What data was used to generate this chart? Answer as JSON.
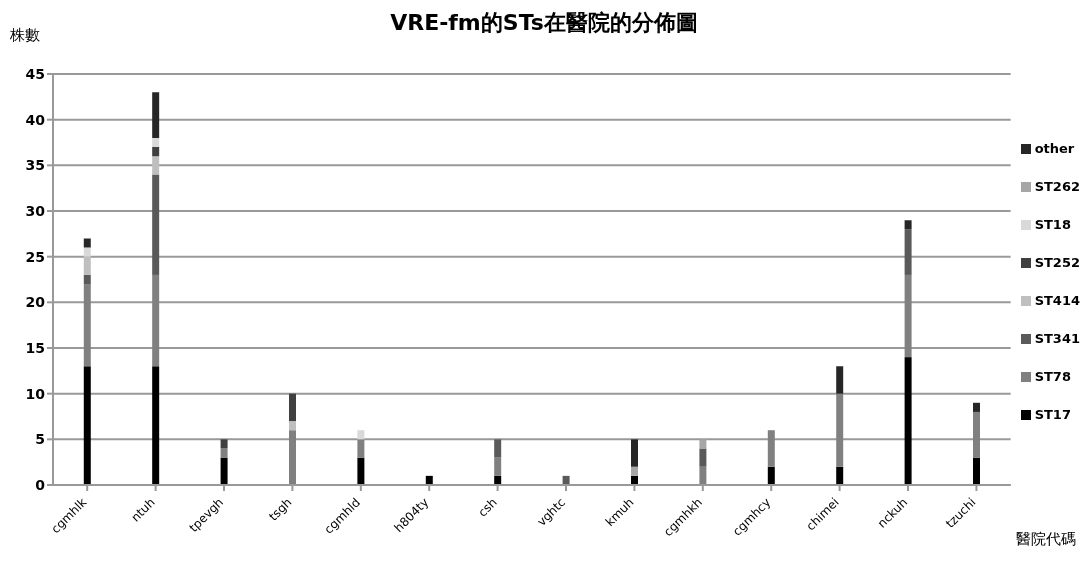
{
  "chart_data": {
    "type": "bar",
    "title": "VRE-fm的STs在醫院的分佈圖",
    "ylabel": "株數",
    "xlabel": "醫院代碼",
    "categories": [
      "cgmhlk",
      "ntuh",
      "tpevgh",
      "tsgh",
      "cgmhld",
      "h804ty",
      "csh",
      "vghtc",
      "kmuh",
      "cgmhkh",
      "cgmhcy",
      "chimei",
      "nckuh",
      "tzuchi"
    ],
    "stacked": true,
    "ylim": [
      0,
      45
    ],
    "yticks": [
      0,
      5,
      10,
      15,
      20,
      25,
      30,
      35,
      40,
      45
    ],
    "grid": "y",
    "legend": "right",
    "series": [
      {
        "name": "ST17",
        "color": "#000000",
        "values": [
          13,
          13,
          3,
          0,
          3,
          1,
          1,
          0,
          1,
          0,
          2,
          2,
          14,
          3
        ]
      },
      {
        "name": "ST78",
        "color": "#808080",
        "values": [
          9,
          10,
          1,
          6,
          2,
          0,
          2,
          0,
          0,
          2,
          4,
          8,
          9,
          5
        ]
      },
      {
        "name": "ST341",
        "color": "#5a5a5a",
        "values": [
          1,
          11,
          0,
          0,
          0,
          0,
          2,
          1,
          0,
          2,
          0,
          0,
          5,
          0
        ]
      },
      {
        "name": "ST414",
        "color": "#bfbfbf",
        "values": [
          2,
          2,
          0,
          1,
          0,
          0,
          0,
          0,
          0,
          0,
          0,
          0,
          0,
          0
        ]
      },
      {
        "name": "ST252",
        "color": "#404040",
        "values": [
          0,
          1,
          1,
          3,
          0,
          0,
          0,
          0,
          0,
          0,
          0,
          0,
          0,
          0
        ]
      },
      {
        "name": "ST18",
        "color": "#d9d9d9",
        "values": [
          1,
          1,
          0,
          0,
          1,
          0,
          0,
          0,
          0,
          0,
          0,
          0,
          0,
          0
        ]
      },
      {
        "name": "ST262",
        "color": "#a6a6a6",
        "values": [
          0,
          0,
          0,
          0,
          0,
          0,
          0,
          0,
          1,
          1,
          0,
          0,
          0,
          0
        ]
      },
      {
        "name": "other",
        "color": "#262626",
        "values": [
          1,
          5,
          0,
          0,
          0,
          0,
          0,
          0,
          3,
          0,
          0,
          3,
          1,
          1
        ]
      }
    ]
  }
}
